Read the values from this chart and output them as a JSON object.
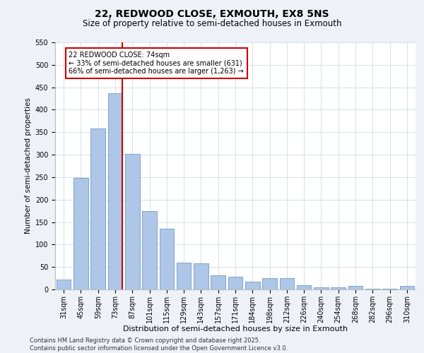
{
  "title_line1": "22, REDWOOD CLOSE, EXMOUTH, EX8 5NS",
  "title_line2": "Size of property relative to semi-detached houses in Exmouth",
  "xlabel": "Distribution of semi-detached houses by size in Exmouth",
  "ylabel": "Number of semi-detached properties",
  "categories": [
    "31sqm",
    "45sqm",
    "59sqm",
    "73sqm",
    "87sqm",
    "101sqm",
    "115sqm",
    "129sqm",
    "143sqm",
    "157sqm",
    "171sqm",
    "184sqm",
    "198sqm",
    "212sqm",
    "226sqm",
    "240sqm",
    "254sqm",
    "268sqm",
    "282sqm",
    "296sqm",
    "310sqm"
  ],
  "values": [
    22,
    248,
    358,
    437,
    302,
    174,
    135,
    60,
    58,
    32,
    28,
    18,
    25,
    25,
    10,
    5,
    5,
    8,
    2,
    2,
    8
  ],
  "bar_color": "#aec6e8",
  "bar_edge_color": "#5b8db8",
  "highlight_line_index": 3,
  "highlight_line_color": "#cc0000",
  "annotation_box_text": "22 REDWOOD CLOSE: 74sqm\n← 33% of semi-detached houses are smaller (631)\n66% of semi-detached houses are larger (1,263) →",
  "annotation_box_color": "#cc0000",
  "ylim": [
    0,
    550
  ],
  "yticks": [
    0,
    50,
    100,
    150,
    200,
    250,
    300,
    350,
    400,
    450,
    500,
    550
  ],
  "background_color": "#eef2f7",
  "plot_background_color": "#ffffff",
  "footer_line1": "Contains HM Land Registry data © Crown copyright and database right 2025.",
  "footer_line2": "Contains public sector information licensed under the Open Government Licence v3.0.",
  "title_fontsize": 10,
  "subtitle_fontsize": 8.5,
  "xlabel_fontsize": 8,
  "ylabel_fontsize": 7.5,
  "tick_fontsize": 7,
  "annotation_fontsize": 7,
  "footer_fontsize": 6
}
